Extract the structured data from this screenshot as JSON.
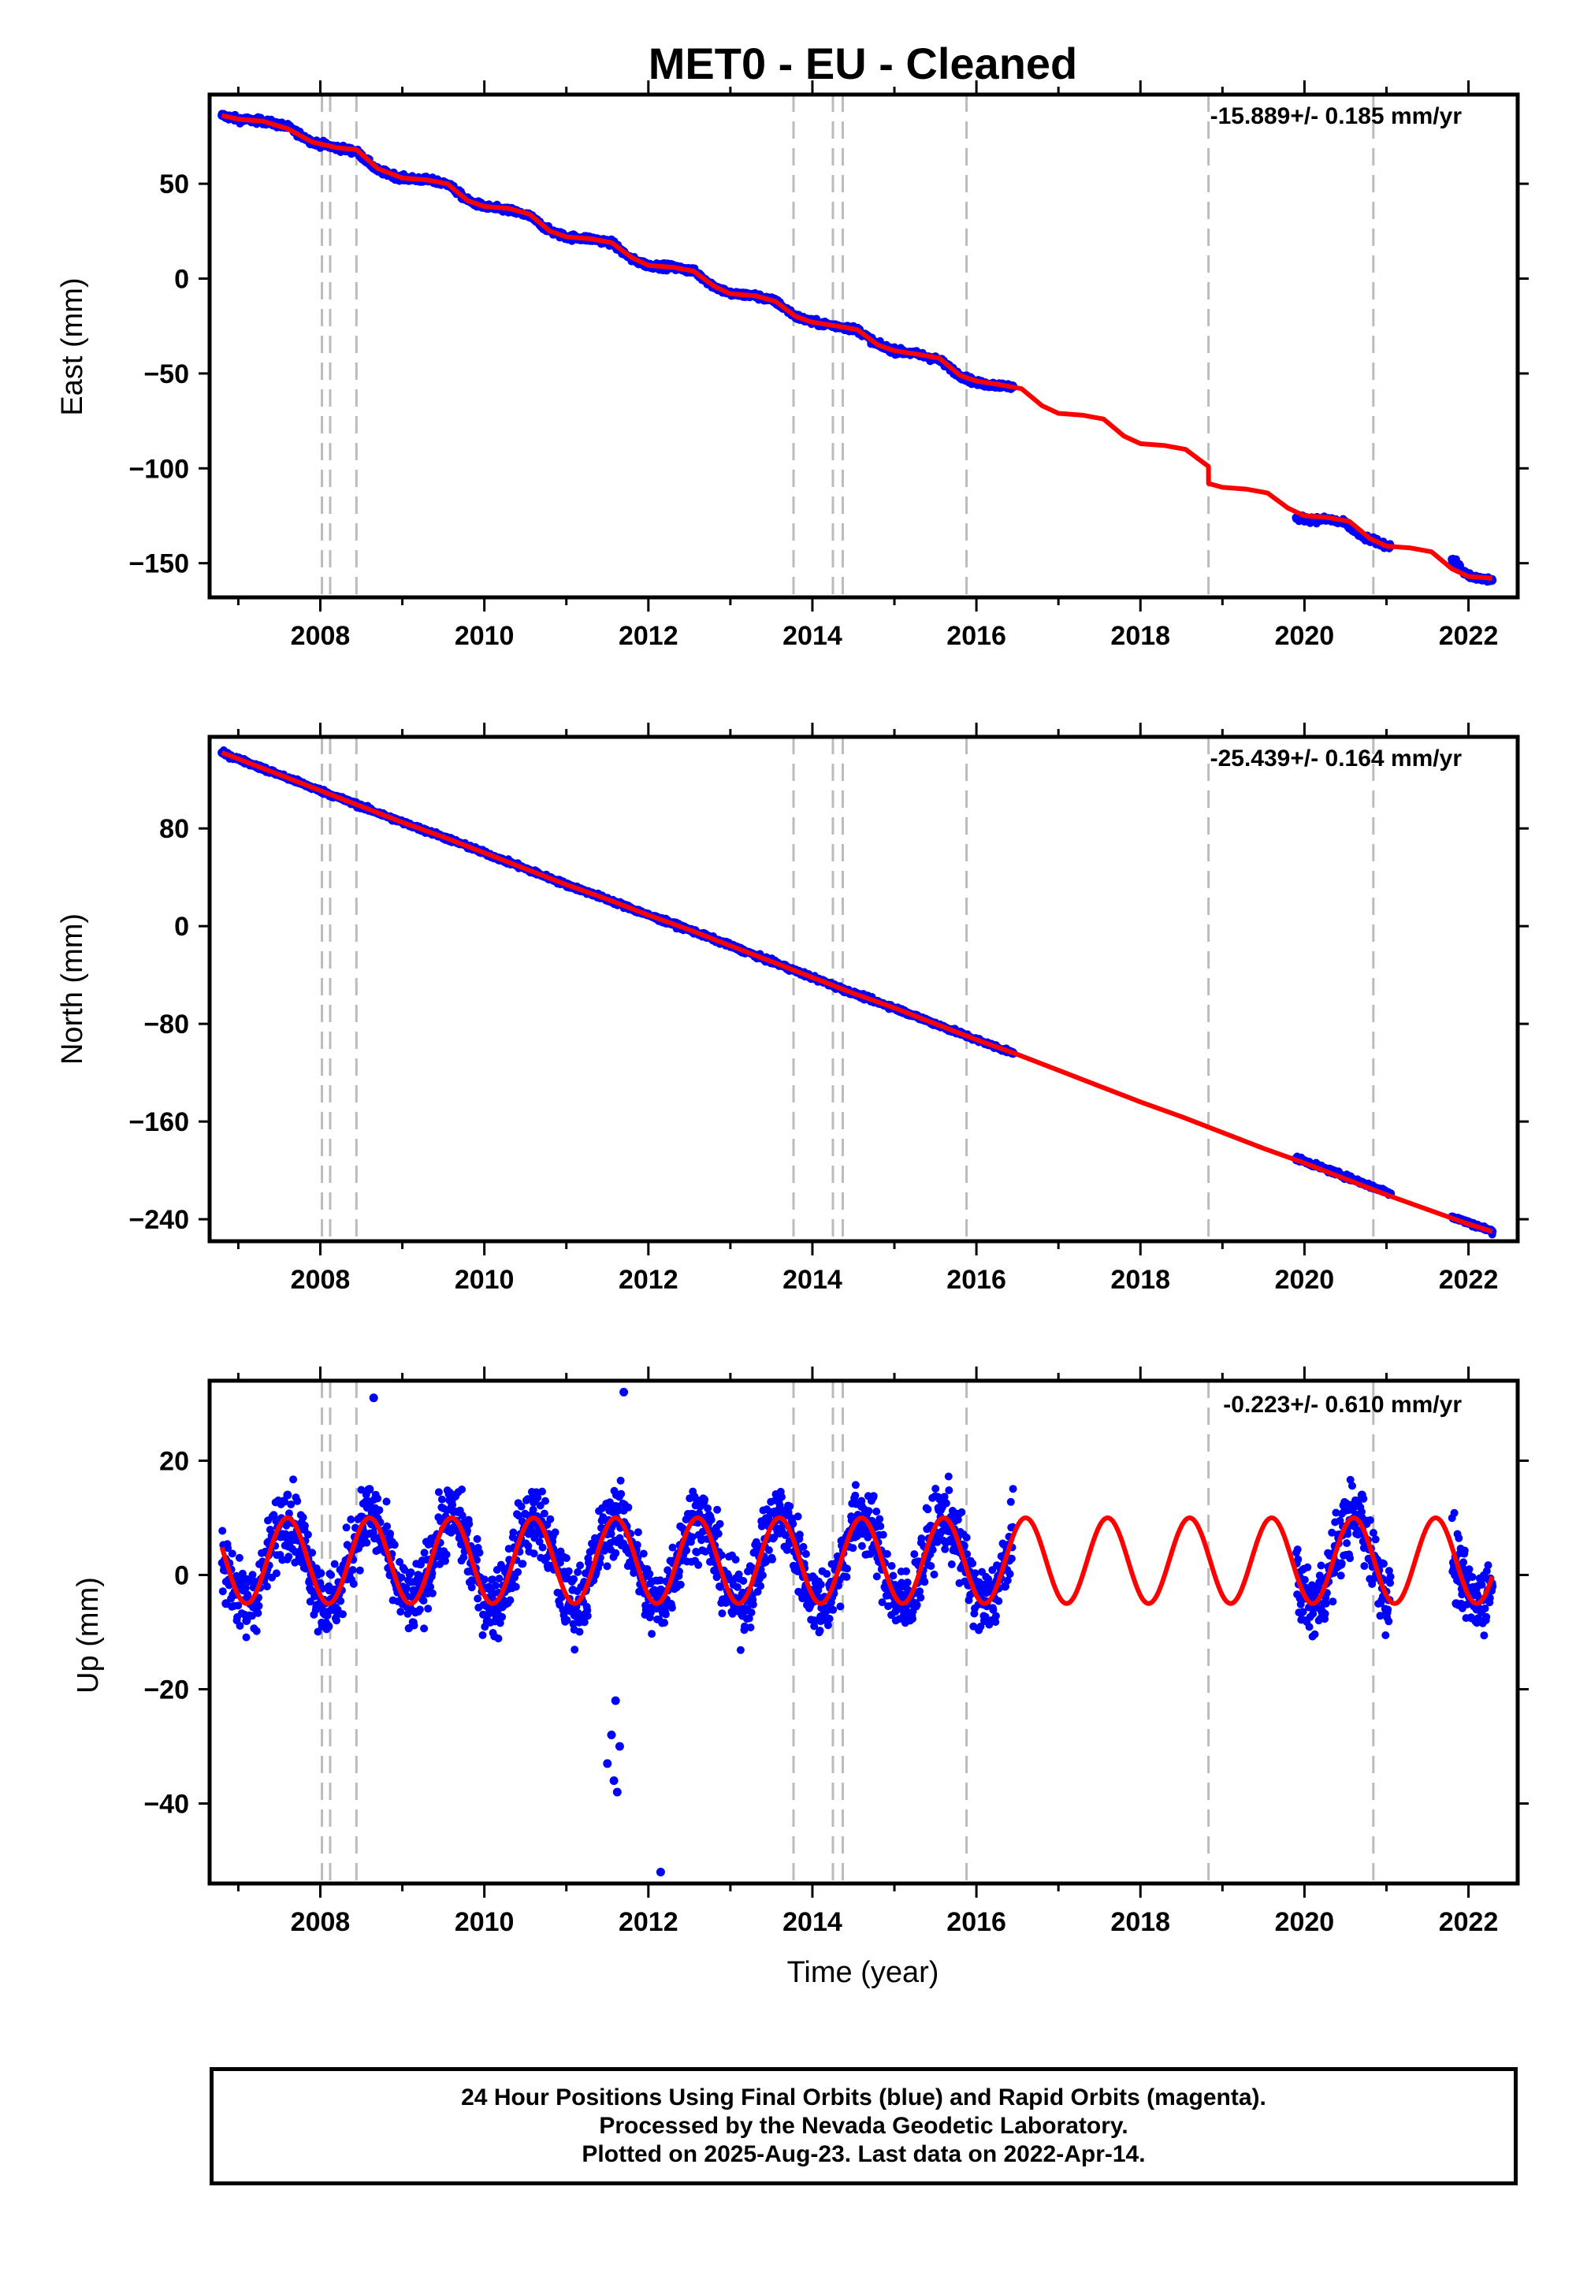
{
  "title": "MET0  - EU - Cleaned",
  "xlabel": "Time (year)",
  "footer": [
    "24 Hour Positions Using Final Orbits (blue) and Rapid Orbits (magenta).",
    "Processed by the Nevada Geodetic Laboratory.",
    "Plotted on 2025-Aug-23. Last data on 2022-Apr-14."
  ],
  "colors": {
    "observations": "#0000ff",
    "model": "#ff0000",
    "steps": "#bbbbbb",
    "frame": "#000000"
  },
  "chart_data": [
    {
      "type": "scatter",
      "component": "east",
      "ylabel": "East (mm)",
      "rate": "-15.889+/- 0.185 mm/yr",
      "xlim": [
        2006.65,
        2022.6
      ],
      "ylim": [
        -168,
        97
      ],
      "xticks": [
        2008,
        2010,
        2012,
        2014,
        2016,
        2018,
        2020,
        2022
      ],
      "yticks": [
        -150,
        -100,
        -50,
        0,
        50
      ],
      "step_epochs": [
        2008.02,
        2008.12,
        2008.44,
        2013.77,
        2014.25,
        2014.37,
        2015.88,
        2018.83,
        2020.84
      ],
      "data_spans": [
        [
          2006.8,
          2016.45
        ],
        [
          2019.9,
          2021.05
        ],
        [
          2021.8,
          2022.29
        ]
      ],
      "series": [
        {
          "name": "Final Orbits",
          "style": "points",
          "x": [
            2006.8,
            2007.0,
            2007.3,
            2007.6,
            2007.9,
            2008.2,
            2008.44,
            2008.7,
            2009.0,
            2009.3,
            2009.55,
            2009.8,
            2010.0,
            2010.3,
            2010.55,
            2010.8,
            2011.0,
            2011.3,
            2011.55,
            2011.8,
            2012.0,
            2012.3,
            2012.55,
            2012.8,
            2013.0,
            2013.3,
            2013.55,
            2013.8,
            2014.0,
            2014.3,
            2014.55,
            2014.8,
            2015.0,
            2015.3,
            2015.55,
            2015.8,
            2016.0,
            2016.2,
            2016.45,
            2019.9,
            2020.1,
            2020.3,
            2020.5,
            2020.7,
            2020.9,
            2021.05,
            2021.8,
            2022.0,
            2022.15,
            2022.29
          ],
          "y": [
            86,
            84,
            83,
            80,
            72,
            69,
            67,
            57,
            53,
            52,
            50,
            41,
            38,
            36,
            33,
            25,
            22,
            21,
            19,
            10,
            7,
            6,
            4,
            -4,
            -8,
            -9,
            -12,
            -20,
            -23,
            -25,
            -27,
            -35,
            -38,
            -40,
            -43,
            -51,
            -55,
            -56,
            -57,
            -126,
            -127,
            -127,
            -129,
            -136,
            -139,
            -141,
            -148,
            -157,
            -158,
            -159
          ]
        },
        {
          "name": "Model",
          "style": "line",
          "x": [
            2006.8,
            2007.0,
            2007.3,
            2007.6,
            2007.9,
            2008.2,
            2008.44,
            2008.7,
            2009.0,
            2009.3,
            2009.55,
            2009.8,
            2010.0,
            2010.3,
            2010.55,
            2010.8,
            2011.0,
            2011.3,
            2011.55,
            2011.8,
            2012.0,
            2012.3,
            2012.55,
            2012.8,
            2013.0,
            2013.3,
            2013.55,
            2013.8,
            2014.0,
            2014.3,
            2014.55,
            2014.8,
            2015.0,
            2015.3,
            2015.55,
            2015.8,
            2016.0,
            2016.3,
            2016.55,
            2016.8,
            2017.0,
            2017.3,
            2017.55,
            2017.8,
            2018.0,
            2018.3,
            2018.55,
            2018.83,
            2018.831,
            2019.0,
            2019.3,
            2019.55,
            2019.8,
            2020.0,
            2020.3,
            2020.55,
            2020.8,
            2021.0,
            2021.3,
            2021.55,
            2021.8,
            2022.0,
            2022.29
          ],
          "y": [
            86,
            84,
            83,
            79,
            72,
            69,
            68,
            58,
            53,
            52,
            50,
            41,
            38,
            37,
            34,
            25,
            22,
            21,
            19,
            11,
            7,
            6,
            4,
            -4,
            -8,
            -9,
            -12,
            -20,
            -23,
            -25,
            -27,
            -35,
            -38,
            -40,
            -42,
            -51,
            -54,
            -56,
            -58,
            -67,
            -71,
            -72,
            -74,
            -83,
            -87,
            -88,
            -90,
            -99,
            -108,
            -110,
            -111,
            -113,
            -121,
            -125,
            -126,
            -128,
            -137,
            -141,
            -142,
            -144,
            -153,
            -157,
            -158
          ]
        }
      ]
    },
    {
      "type": "scatter",
      "component": "north",
      "ylabel": "North (mm)",
      "rate": "-25.439+/- 0.164 mm/yr",
      "xlim": [
        2006.65,
        2022.6
      ],
      "ylim": [
        -258,
        155
      ],
      "xticks": [
        2008,
        2010,
        2012,
        2014,
        2016,
        2018,
        2020,
        2022
      ],
      "yticks": [
        -240,
        -160,
        -80,
        0,
        80
      ],
      "step_epochs": [
        2008.02,
        2008.12,
        2008.44,
        2013.77,
        2014.25,
        2014.37,
        2015.88,
        2018.83,
        2020.84
      ],
      "data_spans": [
        [
          2006.8,
          2016.45
        ],
        [
          2019.9,
          2021.05
        ],
        [
          2021.8,
          2022.29
        ]
      ],
      "series": [
        {
          "name": "Final Orbits",
          "style": "points",
          "x": [
            2006.8,
            2007.5,
            2008.0,
            2008.5,
            2009.0,
            2009.5,
            2010.0,
            2010.5,
            2011.0,
            2011.5,
            2012.0,
            2012.5,
            2013.0,
            2013.5,
            2014.0,
            2014.5,
            2015.0,
            2015.5,
            2016.0,
            2016.45,
            2019.9,
            2020.5,
            2021.05,
            2021.8,
            2022.29
          ],
          "y": [
            142,
            124,
            111,
            98,
            85,
            73,
            60,
            47,
            34,
            22,
            9,
            -3,
            -16,
            -29,
            -42,
            -55,
            -67,
            -80,
            -93,
            -104,
            -190,
            -205,
            -219,
            -238,
            -250
          ]
        },
        {
          "name": "Model",
          "style": "line",
          "x": [
            2006.8,
            2007.0,
            2007.5,
            2008.0,
            2008.5,
            2009.0,
            2009.5,
            2010.0,
            2010.5,
            2011.0,
            2011.5,
            2012.0,
            2012.5,
            2013.0,
            2013.5,
            2014.0,
            2014.5,
            2015.0,
            2015.5,
            2016.0,
            2016.5,
            2017.0,
            2017.5,
            2018.0,
            2018.5,
            2019.0,
            2019.5,
            2020.0,
            2020.5,
            2021.0,
            2021.5,
            2022.0,
            2022.29
          ],
          "y": [
            142,
            137,
            124,
            111,
            98,
            85,
            73,
            60,
            47,
            34,
            22,
            9,
            -3,
            -16,
            -29,
            -42,
            -55,
            -67,
            -80,
            -93,
            -105,
            -118,
            -131,
            -144,
            -156,
            -169,
            -182,
            -194,
            -207,
            -220,
            -232,
            -244,
            -250
          ]
        }
      ]
    },
    {
      "type": "scatter",
      "component": "up",
      "ylabel": "Up (mm)",
      "rate": "-0.223+/- 0.610 mm/yr",
      "xlim": [
        2006.65,
        2022.6
      ],
      "ylim": [
        -54,
        34
      ],
      "xticks": [
        2008,
        2010,
        2012,
        2014,
        2016,
        2018,
        2020,
        2022
      ],
      "yticks": [
        -40,
        -20,
        0,
        20
      ],
      "step_epochs": [
        2008.02,
        2008.12,
        2008.44,
        2013.77,
        2014.25,
        2014.37,
        2015.88,
        2018.83,
        2020.84
      ],
      "data_spans": [
        [
          2006.8,
          2016.45
        ],
        [
          2019.9,
          2021.05
        ],
        [
          2021.8,
          2022.29
        ]
      ],
      "seasonal_model": {
        "mean": 2.5,
        "annual_amplitude": 7.5,
        "peak_phase": 0.6
      },
      "series": [
        {
          "name": "Final Orbits",
          "style": "points",
          "x": [
            2006.85,
            2007.1,
            2007.35,
            2007.6,
            2007.85,
            2008.1,
            2008.35,
            2008.6,
            2008.85,
            2009.1,
            2009.35,
            2009.6,
            2009.85,
            2010.1,
            2010.35,
            2010.6,
            2010.85,
            2011.1,
            2011.35,
            2011.6,
            2011.85,
            2012.1,
            2012.35,
            2012.6,
            2012.85,
            2013.1,
            2013.35,
            2013.6,
            2013.85,
            2014.1,
            2014.35,
            2014.6,
            2014.85,
            2015.1,
            2015.35,
            2015.6,
            2015.85,
            2016.1,
            2016.35,
            2019.95,
            2020.2,
            2020.45,
            2020.7,
            2020.95,
            2021.85,
            2022.1,
            2022.29,
            2011.5,
            2011.55,
            2011.58,
            2011.6,
            2011.62,
            2011.65,
            2012.15,
            2008.65,
            2011.7
          ],
          "y": [
            -5,
            -8,
            1,
            14,
            2,
            -9,
            0,
            15,
            0,
            -6,
            1,
            13,
            -1,
            -5,
            0,
            14,
            1,
            -7,
            0,
            12,
            2,
            -5,
            2,
            13,
            0,
            -6,
            0,
            14,
            2,
            -8,
            2,
            12,
            1,
            -6,
            -1,
            13,
            2,
            -8,
            -2,
            -4,
            -6,
            2,
            14,
            2,
            -5,
            -6,
            -2,
            -33,
            -28,
            -36,
            -22,
            -38,
            -30,
            -52,
            31,
            32
          ]
        },
        {
          "name": "Model",
          "style": "line",
          "function": "seasonal"
        }
      ]
    }
  ]
}
